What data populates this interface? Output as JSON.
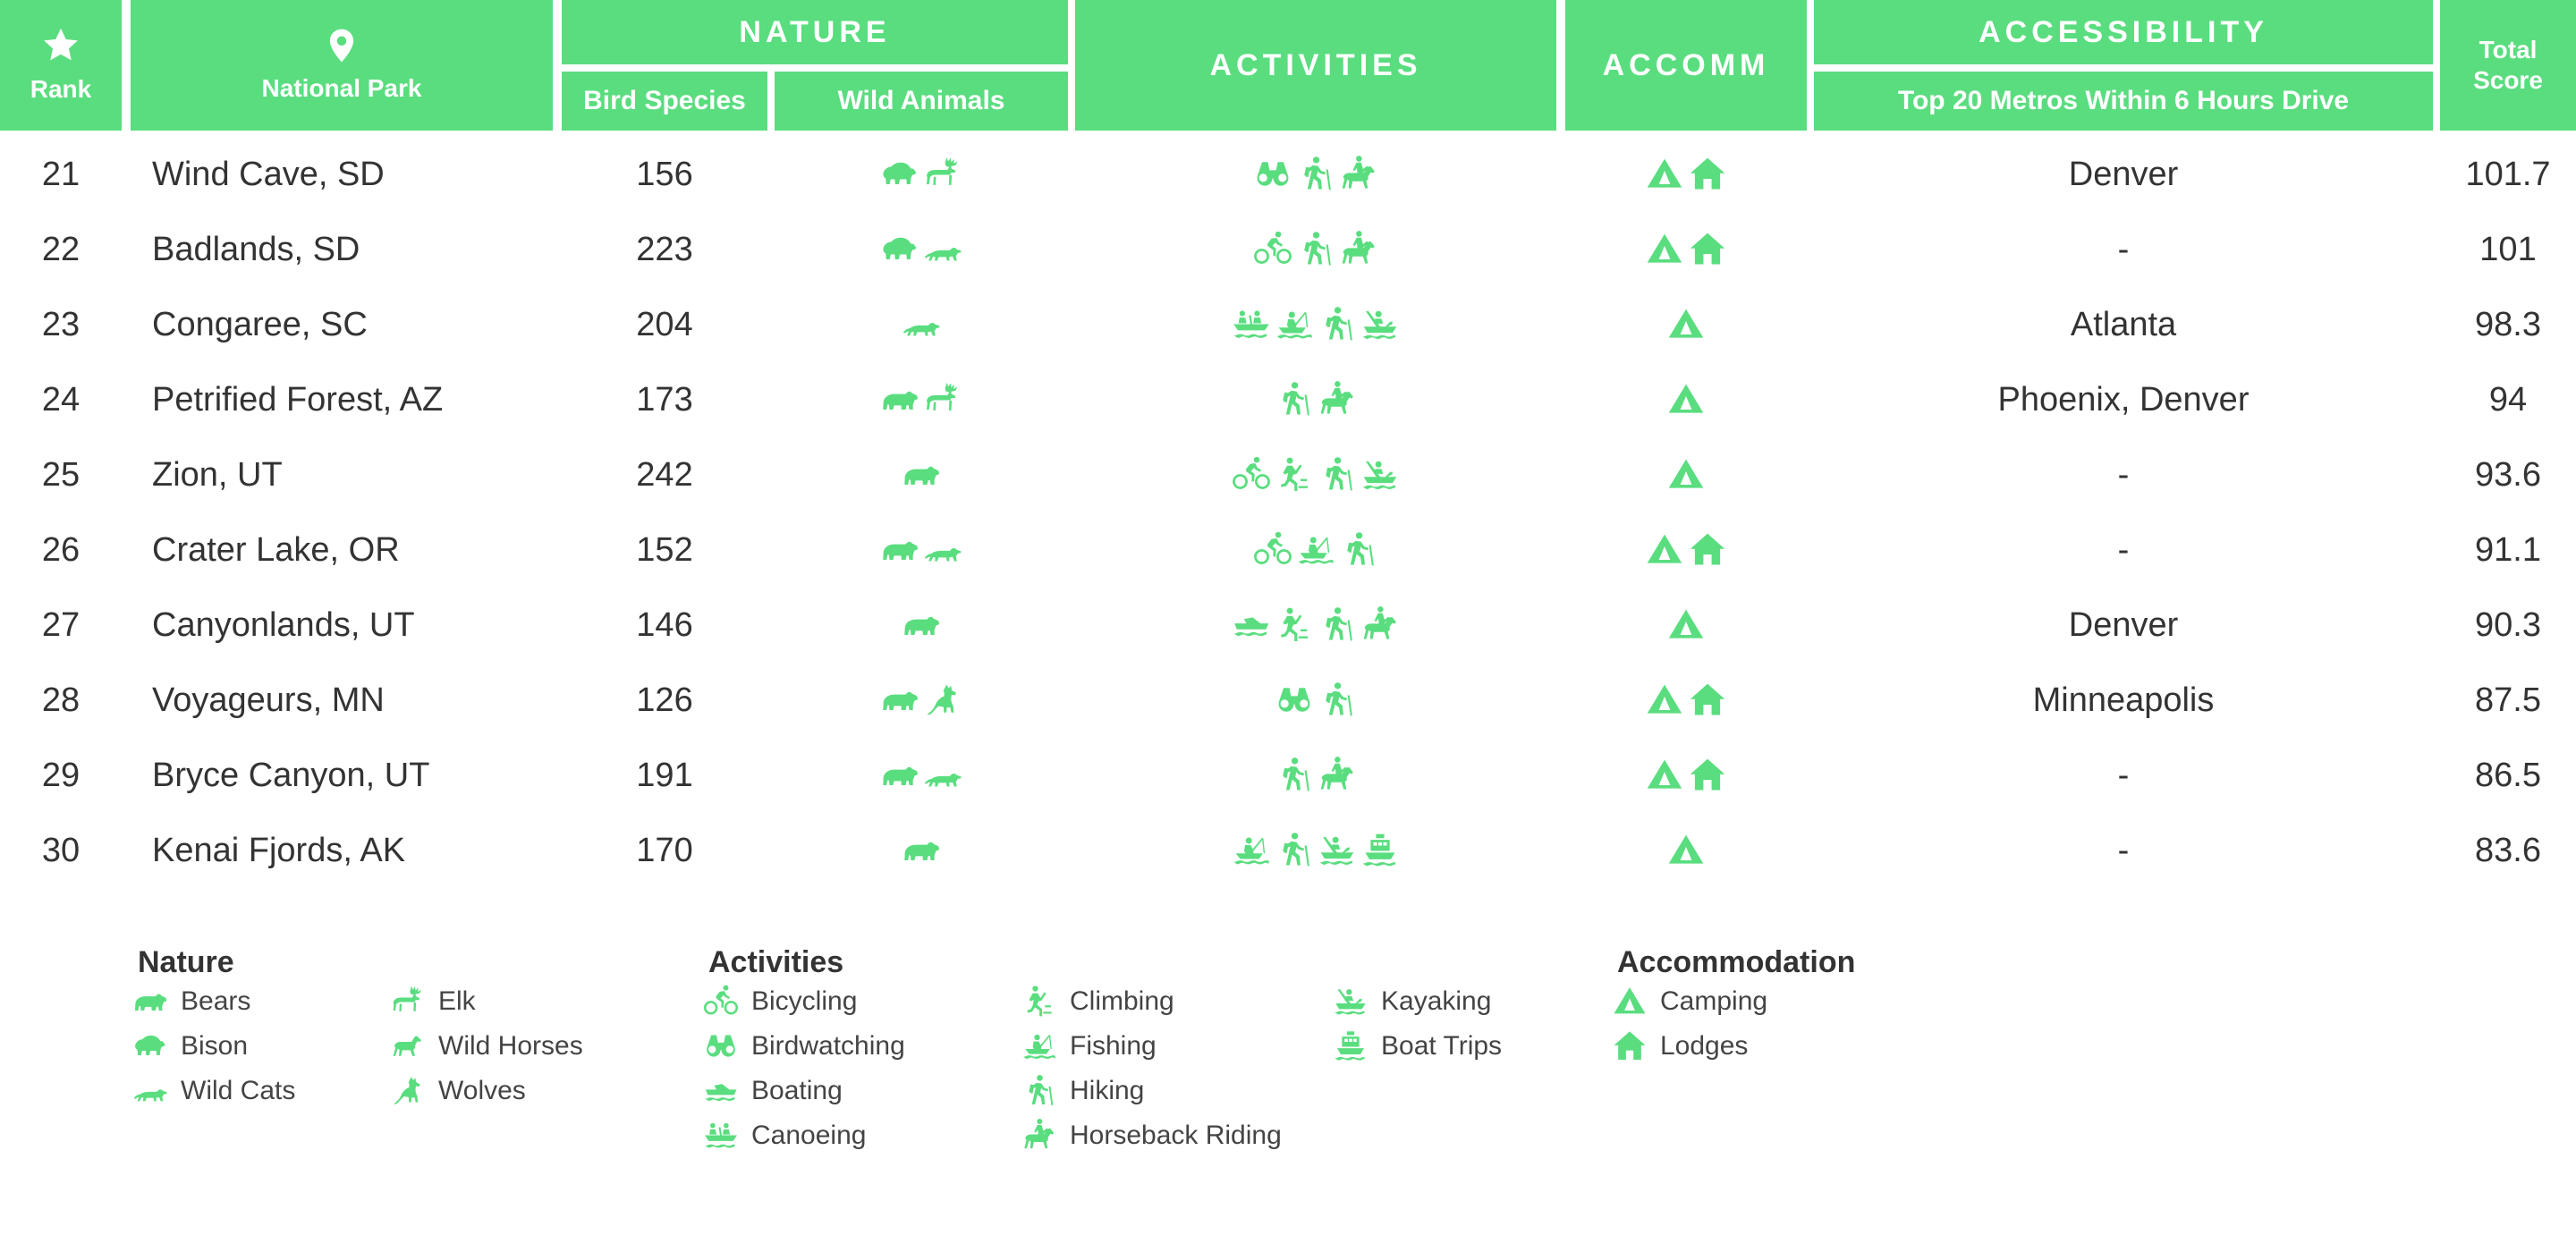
{
  "colors": {
    "accent": "#5ADD7F",
    "text": "#333333"
  },
  "header": {
    "rank": "Rank",
    "rank_icon": "star-icon",
    "park": "National Park",
    "park_icon": "location-pin-icon",
    "nature": "NATURE",
    "bird_species": "Bird Species",
    "wild_animals": "Wild Animals",
    "activities": "ACTIVITIES",
    "accomm": "ACCOMM",
    "accessibility": "ACCESSIBILITY",
    "metros": "Top 20 Metros Within 6 Hours Drive",
    "total_score_1": "Total",
    "total_score_2": "Score"
  },
  "rows": [
    {
      "rank": "21",
      "park": "Wind Cave, SD",
      "birds": "156",
      "animals": [
        "bison-icon",
        "elk-icon"
      ],
      "activities": [
        "binoculars-icon",
        "hiking-icon",
        "horseback-icon"
      ],
      "accomm": [
        "tent-icon",
        "lodge-icon"
      ],
      "metros": "Denver",
      "score": "101.7"
    },
    {
      "rank": "22",
      "park": "Badlands, SD",
      "birds": "223",
      "animals": [
        "bison-icon",
        "wild-cat-icon"
      ],
      "activities": [
        "bicycle-icon",
        "hiking-icon",
        "horseback-icon"
      ],
      "accomm": [
        "tent-icon",
        "lodge-icon"
      ],
      "metros": "-",
      "score": "101"
    },
    {
      "rank": "23",
      "park": "Congaree, SC",
      "birds": "204",
      "animals": [
        "wild-cat-icon"
      ],
      "activities": [
        "canoe-icon",
        "fishing-icon",
        "hiking-icon",
        "kayak-icon"
      ],
      "accomm": [
        "tent-icon"
      ],
      "metros": "Atlanta",
      "score": "98.3"
    },
    {
      "rank": "24",
      "park": "Petrified Forest, AZ",
      "birds": "173",
      "animals": [
        "bear-icon",
        "elk-icon"
      ],
      "activities": [
        "hiking-icon",
        "horseback-icon"
      ],
      "accomm": [
        "tent-icon"
      ],
      "metros": "Phoenix, Denver",
      "score": "94"
    },
    {
      "rank": "25",
      "park": "Zion, UT",
      "birds": "242",
      "animals": [
        "bear-icon"
      ],
      "activities": [
        "bicycle-icon",
        "climbing-icon",
        "hiking-icon",
        "kayak-icon"
      ],
      "accomm": [
        "tent-icon"
      ],
      "metros": "-",
      "score": "93.6"
    },
    {
      "rank": "26",
      "park": "Crater Lake, OR",
      "birds": "152",
      "animals": [
        "bear-icon",
        "wild-cat-icon"
      ],
      "activities": [
        "bicycle-icon",
        "fishing-icon",
        "hiking-icon"
      ],
      "accomm": [
        "tent-icon",
        "lodge-icon"
      ],
      "metros": "-",
      "score": "91.1"
    },
    {
      "rank": "27",
      "park": "Canyonlands, UT",
      "birds": "146",
      "animals": [
        "bear-icon"
      ],
      "activities": [
        "boat-icon",
        "climbing-icon",
        "hiking-icon",
        "horseback-icon"
      ],
      "accomm": [
        "tent-icon"
      ],
      "metros": "Denver",
      "score": "90.3"
    },
    {
      "rank": "28",
      "park": "Voyageurs, MN",
      "birds": "126",
      "animals": [
        "bear-icon",
        "wolf-icon"
      ],
      "activities": [
        "binoculars-icon",
        "hiking-icon"
      ],
      "accomm": [
        "tent-icon",
        "lodge-icon"
      ],
      "metros": "Minneapolis",
      "score": "87.5"
    },
    {
      "rank": "29",
      "park": "Bryce Canyon, UT",
      "birds": "191",
      "animals": [
        "bear-icon",
        "wild-cat-icon"
      ],
      "activities": [
        "hiking-icon",
        "horseback-icon"
      ],
      "accomm": [
        "tent-icon",
        "lodge-icon"
      ],
      "metros": "-",
      "score": "86.5"
    },
    {
      "rank": "30",
      "park": "Kenai Fjords, AK",
      "birds": "170",
      "animals": [
        "bear-icon"
      ],
      "activities": [
        "fishing-icon",
        "hiking-icon",
        "kayak-icon",
        "boat-trip-icon"
      ],
      "accomm": [
        "tent-icon"
      ],
      "metros": "-",
      "score": "83.6"
    }
  ],
  "legend": {
    "nature": {
      "title": "Nature",
      "items": [
        {
          "icon": "bear-icon",
          "label": "Bears"
        },
        {
          "icon": "bison-icon",
          "label": "Bison"
        },
        {
          "icon": "wild-cat-icon",
          "label": "Wild Cats"
        },
        {
          "icon": "elk-icon",
          "label": "Elk"
        },
        {
          "icon": "horse-icon",
          "label": "Wild Horses"
        },
        {
          "icon": "wolf-icon",
          "label": "Wolves"
        }
      ]
    },
    "activities": {
      "title": "Activities",
      "items": [
        {
          "icon": "bicycle-icon",
          "label": "Bicycling"
        },
        {
          "icon": "binoculars-icon",
          "label": "Birdwatching"
        },
        {
          "icon": "boat-icon",
          "label": "Boating"
        },
        {
          "icon": "canoe-icon",
          "label": "Canoeing"
        },
        {
          "icon": "climbing-icon",
          "label": "Climbing"
        },
        {
          "icon": "fishing-icon",
          "label": "Fishing"
        },
        {
          "icon": "hiking-icon",
          "label": "Hiking"
        },
        {
          "icon": "horseback-icon",
          "label": "Horseback Riding"
        },
        {
          "icon": "kayak-icon",
          "label": "Kayaking"
        },
        {
          "icon": "boat-trip-icon",
          "label": "Boat Trips"
        }
      ]
    },
    "accommodation": {
      "title": "Accommodation",
      "items": [
        {
          "icon": "tent-icon",
          "label": "Camping"
        },
        {
          "icon": "lodge-icon",
          "label": "Lodges"
        }
      ]
    }
  }
}
